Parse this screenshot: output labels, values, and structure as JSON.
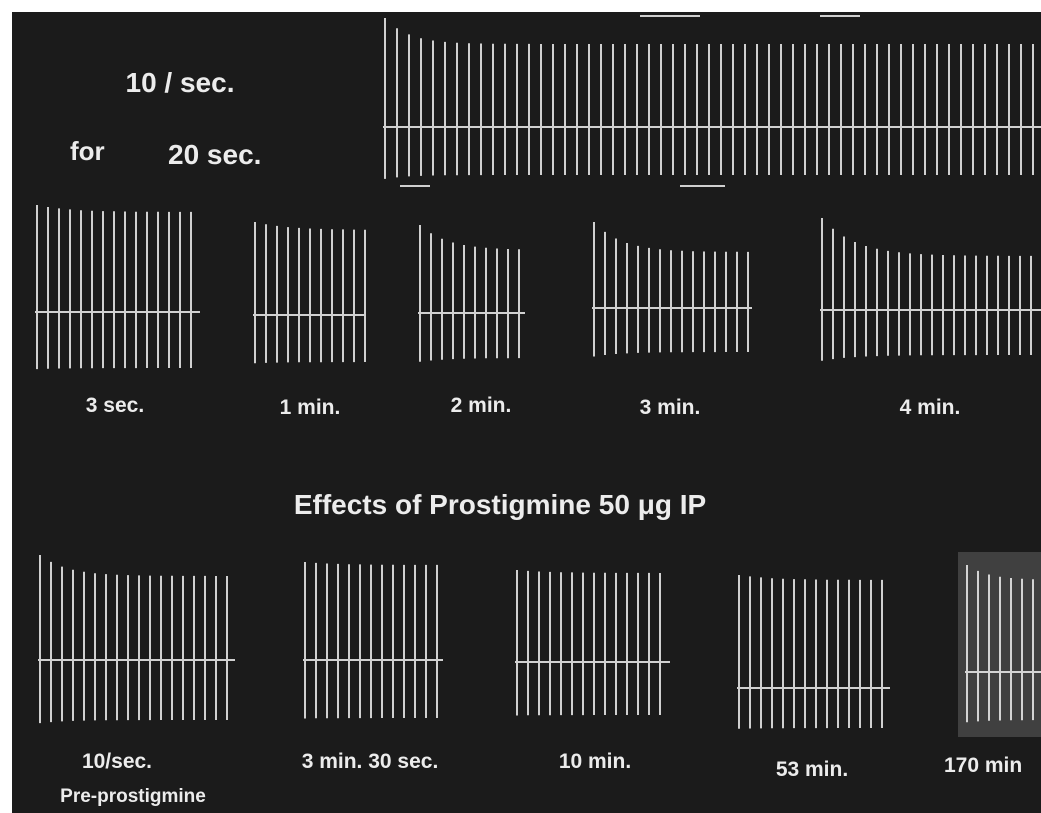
{
  "top_panel": {
    "rate": "10 / sec.",
    "for": "for",
    "duration": "20 sec."
  },
  "recovery": {
    "labels": [
      "3 sec.",
      "1 min.",
      "2 min.",
      "3 min.",
      "4 min."
    ]
  },
  "title": "Effects of Prostigmine 50 μg IP",
  "prostigmine": {
    "labels": [
      "10/sec.",
      "3 min. 30 sec.",
      "10 min.",
      "53 min.",
      "170 min"
    ],
    "note": "Pre-prostigmine"
  }
}
